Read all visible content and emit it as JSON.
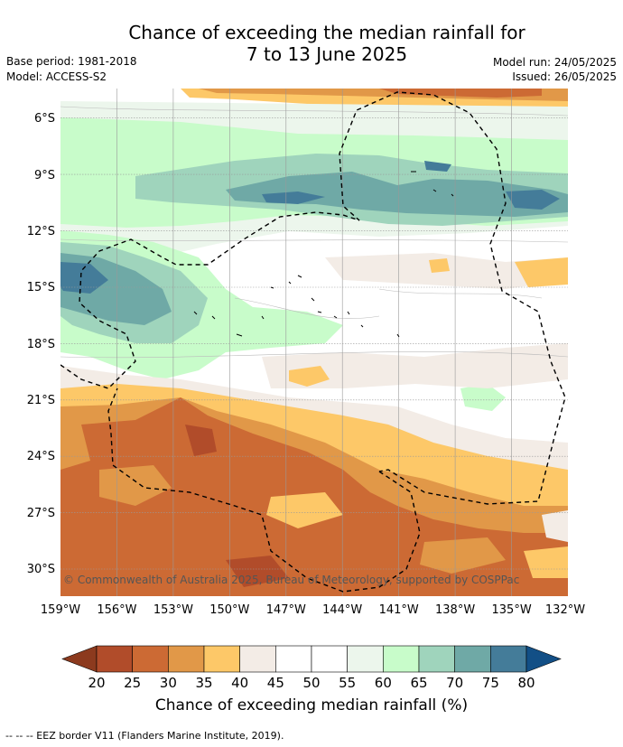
{
  "title_line1": "Chance of exceeding the median rainfall for",
  "title_line2": "7 to 13 June 2025",
  "base_period": "Base period: 1981-2018",
  "model": "Model: ACCESS-S2",
  "model_run": "Model run: 24/05/2025",
  "issued": "Issued: 26/05/2025",
  "copyright": "© Commonwealth of Australia 2025, Bureau of Meteorology, supported by COSPPac",
  "lat_labels": [
    "6°S",
    "9°S",
    "12°S",
    "15°S",
    "18°S",
    "21°S",
    "24°S",
    "27°S",
    "30°S"
  ],
  "lon_labels": [
    "159°W",
    "156°W",
    "153°W",
    "150°W",
    "147°W",
    "144°W",
    "141°W",
    "138°W",
    "135°W",
    "132°W"
  ],
  "colorbar": {
    "ticks": [
      "20",
      "25",
      "30",
      "35",
      "40",
      "45",
      "50",
      "55",
      "60",
      "65",
      "70",
      "75",
      "80"
    ],
    "colors": [
      "#8c3a1e",
      "#b14c2a",
      "#cc6a34",
      "#e19848",
      "#fdc868",
      "#f3ece6",
      "#ffffff",
      "#ffffff",
      "#ecf6ec",
      "#c8fcca",
      "#9fd4bc",
      "#6fa9a6",
      "#447c99",
      "#124f86"
    ],
    "title": "Chance of exceeding median rainfall (%)"
  },
  "footer": "-- -- -- EEZ border V11 (Flanders Marine Institute, 2019)."
}
